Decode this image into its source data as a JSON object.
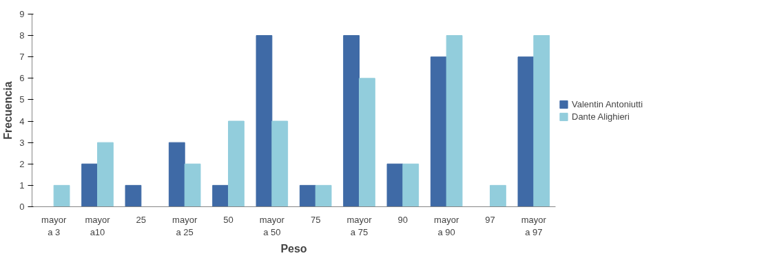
{
  "chart_data": {
    "type": "bar",
    "xlabel": "Peso",
    "ylabel": "Frecuencia",
    "categories": [
      "mayor a 3",
      "mayor a10",
      "25",
      "mayor a 25",
      "50",
      "mayor a 50",
      "75",
      "mayor a 75",
      "90",
      "mayor a 90",
      "97",
      "mayor a 97"
    ],
    "series": [
      {
        "name": "Valentin Antoniutti",
        "color": "#3f6aa6",
        "values": [
          0,
          2,
          1,
          3,
          1,
          8,
          1,
          8,
          2,
          7,
          0,
          7
        ]
      },
      {
        "name": "Dante Alighieri",
        "color": "#92cddc",
        "values": [
          1,
          3,
          0,
          2,
          4,
          4,
          1,
          6,
          2,
          8,
          1,
          8
        ]
      }
    ],
    "ylim": [
      0,
      9
    ],
    "yticks": [
      0,
      1,
      2,
      3,
      4,
      5,
      6,
      7,
      8,
      9
    ],
    "grid": false,
    "legend": "right"
  }
}
